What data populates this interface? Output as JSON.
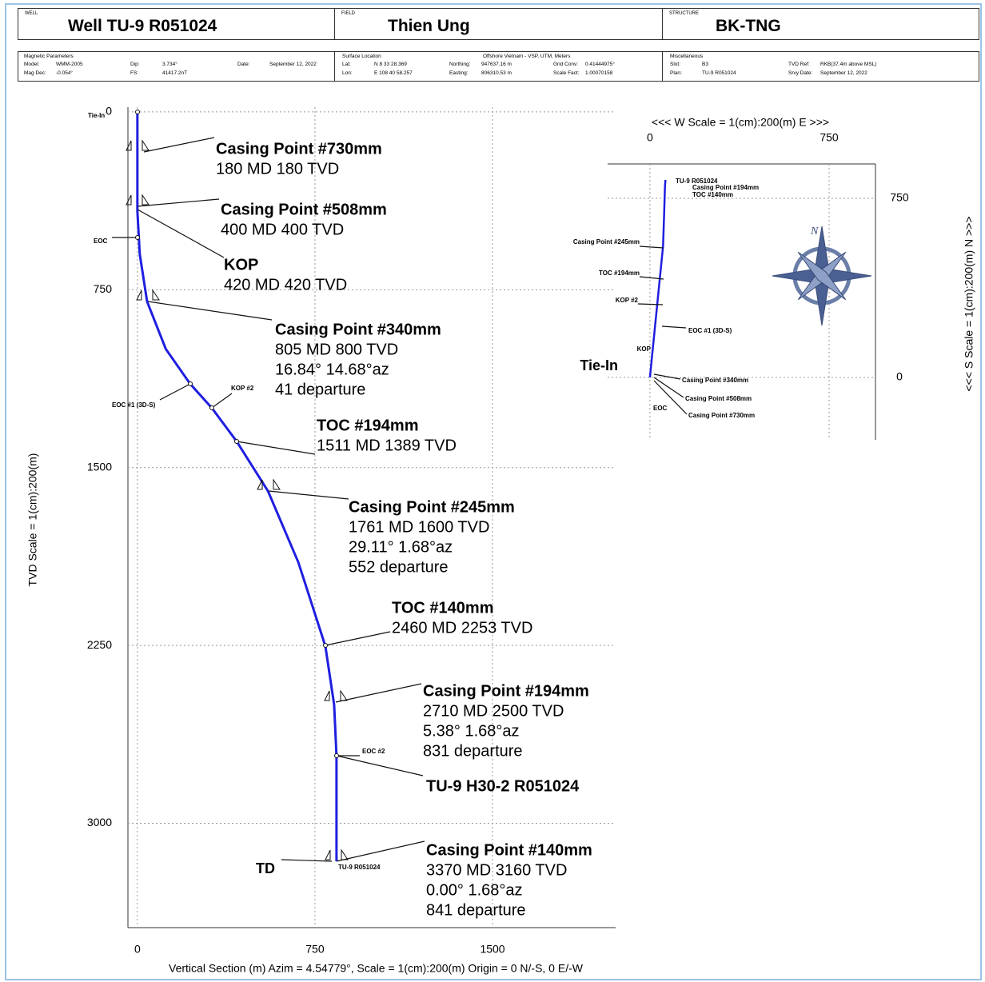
{
  "header": {
    "well_caption": "WELL",
    "well": "Well TU-9 R051024",
    "field_caption": "FIELD",
    "field": "Thien Ung",
    "structure_caption": "STRUCTURE",
    "structure": "BK-TNG",
    "magnetic": {
      "title": "Magnetic Parameters",
      "rows": [
        [
          "Model:",
          "WMM-2005"
        ],
        [
          "Dip:",
          "3.734°"
        ],
        [
          "Date:",
          "September 12, 2022"
        ],
        [
          "Mag Dec:",
          "-0.054°"
        ],
        [
          "FS:",
          "41417.2nT"
        ]
      ]
    },
    "surface": {
      "title": "Surface Location",
      "projection": "Offshore Vietnam - VSP, UTM, Meters",
      "rows": [
        [
          "Lat:",
          "N 8 33 28.369"
        ],
        [
          "Northing:",
          "947637.16 m"
        ],
        [
          "Grid Conv:",
          "0.41444975°"
        ],
        [
          "Lon:",
          "E 108 40 58.257"
        ],
        [
          "Easting:",
          "806310.53 m"
        ],
        [
          "Scale Fact:",
          "1.00070158"
        ]
      ]
    },
    "misc": {
      "title": "Miscellaneous",
      "rows": [
        [
          "Slot:",
          "B3"
        ],
        [
          "TVD Ref:",
          "RKB(37.4m above MSL)"
        ],
        [
          "Plan:",
          "TU-9 R051024"
        ],
        [
          "Srvy Date:",
          "September 12, 2022"
        ]
      ]
    }
  },
  "chart_data": [
    {
      "type": "line",
      "x_label": "Vertical Section (m) Azim = 4.54779°, Scale = 1(cm):200(m)  Origin = 0 N/-S, 0 E/-W",
      "y_label": "TVD Scale = 1(cm):200(m)",
      "xlim": [
        -40,
        2020
      ],
      "ylim": [
        3440,
        -20
      ],
      "xticks": [
        0,
        750,
        1500
      ],
      "yticks": [
        0,
        750,
        1500,
        2250,
        3000
      ],
      "grid": true,
      "series": [
        {
          "name": "TU-9 H30-2 R051024",
          "color": "#1f1fe0",
          "x": [
            0,
            0,
            0,
            10,
            41,
            120,
            223,
            314,
            419,
            552,
            680,
            794,
            831,
            841,
            841
          ],
          "values": [
            0,
            180,
            420,
            600,
            800,
            1000,
            1147,
            1248,
            1389,
            1600,
            1900,
            2253,
            2500,
            2715,
            3160
          ]
        }
      ],
      "annotations": [
        [
          "Casing Point #730mm",
          "180 MD  180 TVD"
        ],
        [
          "Casing Point #508mm",
          "400 MD  400 TVD"
        ],
        [
          "KOP",
          "420 MD  420 TVD"
        ],
        [
          "Casing Point #340mm",
          "805 MD  800 TVD",
          "16.84°  14.68°az",
          "41 departure"
        ],
        [
          "TOC #194mm",
          "1511 MD  1389 TVD"
        ],
        [
          "Casing Point #245mm",
          "1761 MD  1600 TVD",
          "29.11°  1.68°az",
          "552 departure"
        ],
        [
          "TOC #140mm",
          "2460 MD  2253 TVD"
        ],
        [
          "Casing Point #194mm",
          "2710 MD  2500 TVD",
          "5.38°  1.68°az",
          "831 departure"
        ],
        [
          "Casing Point #140mm",
          "3370 MD  3160 TVD",
          "0.00°  1.68°az",
          "841 departure"
        ]
      ],
      "point_labels": [
        "Tie-In",
        "EOC",
        "EOC #1 (3D-S)",
        "KOP #2",
        "EOC #2",
        "TU-9 R051024",
        "TD"
      ]
    },
    {
      "type": "line",
      "x_label": "<<< W   Scale = 1(cm):200(m)   E >>>",
      "y_label": "<<< S   Scale = 1(cm):200(m)   N >>>",
      "xlim": [
        -177,
        944
      ],
      "ylim": [
        -261,
        894
      ],
      "xticks": [
        0,
        750
      ],
      "yticks": [
        0,
        750
      ],
      "grid": true,
      "series": [
        {
          "name": "TU-9 R051024",
          "color": "#1f1fe0",
          "x": [
            0,
            2,
            10,
            20,
            40,
            55,
            60,
            63,
            65
          ],
          "values": [
            0,
            20,
            100,
            200,
            400,
            550,
            700,
            800,
            827
          ]
        }
      ],
      "point_labels": [
        "Casing Point #245mm",
        "TOC #194mm",
        "KOP #2",
        "EOC #1 (3D-S)",
        "KOP",
        "Tie-In",
        "Casing Point #340mm",
        "Casing Point #508mm",
        "Casing Point #730mm",
        "EOC",
        "Casing Point #194mm",
        "TOC #140mm"
      ],
      "compass": "N"
    }
  ]
}
